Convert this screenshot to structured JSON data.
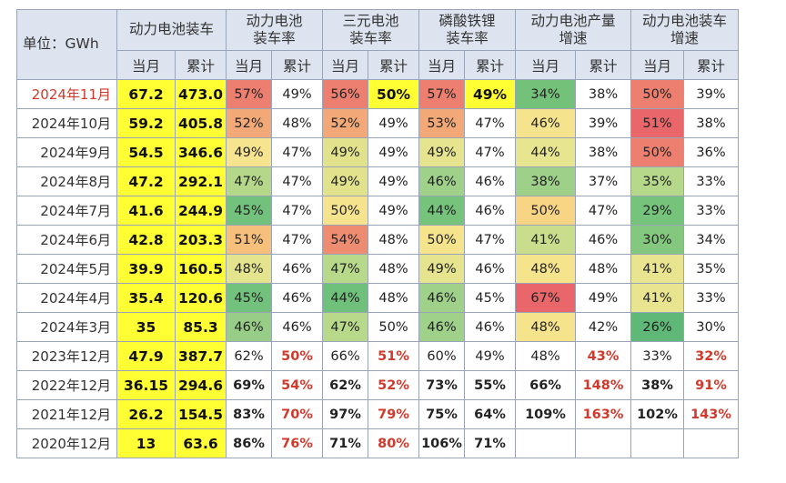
{
  "header": {
    "unit": "单位：GWh",
    "groups": [
      "动力电池装车",
      "动力电池\n装车率",
      "三元电池\n装车率",
      "磷酸铁锂\n装车率",
      "动力电池产量\n增速",
      "动力电池装车\n增速"
    ],
    "sub": [
      "当月",
      "累计"
    ]
  },
  "rows": [
    {
      "date": "2024年11月",
      "hl": true,
      "cells": [
        {
          "v": "67.2",
          "s": "y"
        },
        {
          "v": "473.0",
          "s": "y"
        },
        {
          "v": "57%",
          "bg": "#ec7f6f"
        },
        {
          "v": "49%"
        },
        {
          "v": "56%",
          "bg": "#ec7f6f"
        },
        {
          "v": "50%",
          "s": "y"
        },
        {
          "v": "57%",
          "bg": "#ec7f6f"
        },
        {
          "v": "49%",
          "s": "y"
        },
        {
          "v": "34%",
          "bg": "#74c27a"
        },
        {
          "v": "38%"
        },
        {
          "v": "50%",
          "bg": "#ec7f6f"
        },
        {
          "v": "39%"
        }
      ]
    },
    {
      "date": "2024年10月",
      "cells": [
        {
          "v": "59.2",
          "s": "y"
        },
        {
          "v": "405.8",
          "s": "y"
        },
        {
          "v": "52%",
          "bg": "#f2a977"
        },
        {
          "v": "48%"
        },
        {
          "v": "52%",
          "bg": "#f2a977"
        },
        {
          "v": "49%"
        },
        {
          "v": "53%",
          "bg": "#f2a977"
        },
        {
          "v": "47%"
        },
        {
          "v": "46%",
          "bg": "#f5e48d"
        },
        {
          "v": "39%"
        },
        {
          "v": "51%",
          "bg": "#e9676a"
        },
        {
          "v": "38%"
        }
      ]
    },
    {
      "date": "2024年9月",
      "cells": [
        {
          "v": "54.5",
          "s": "y"
        },
        {
          "v": "346.6",
          "s": "y"
        },
        {
          "v": "49%",
          "bg": "#f6e48f"
        },
        {
          "v": "47%"
        },
        {
          "v": "49%",
          "bg": "#e3e28c"
        },
        {
          "v": "49%"
        },
        {
          "v": "49%",
          "bg": "#e6e48f"
        },
        {
          "v": "47%"
        },
        {
          "v": "44%",
          "bg": "#e7e58f"
        },
        {
          "v": "38%"
        },
        {
          "v": "50%",
          "bg": "#ec7f6f"
        },
        {
          "v": "36%"
        }
      ]
    },
    {
      "date": "2024年8月",
      "cells": [
        {
          "v": "47.2",
          "s": "y"
        },
        {
          "v": "292.1",
          "s": "y"
        },
        {
          "v": "47%",
          "bg": "#b4d789"
        },
        {
          "v": "47%"
        },
        {
          "v": "49%",
          "bg": "#e3e28c"
        },
        {
          "v": "49%"
        },
        {
          "v": "46%",
          "bg": "#9fd18a"
        },
        {
          "v": "46%"
        },
        {
          "v": "38%",
          "bg": "#9ed089"
        },
        {
          "v": "37%"
        },
        {
          "v": "35%",
          "bg": "#b6d88a"
        },
        {
          "v": "33%"
        }
      ]
    },
    {
      "date": "2024年7月",
      "cells": [
        {
          "v": "41.6",
          "s": "y"
        },
        {
          "v": "244.9",
          "s": "y"
        },
        {
          "v": "45%",
          "bg": "#72c17c"
        },
        {
          "v": "47%"
        },
        {
          "v": "50%",
          "bg": "#f5e48d"
        },
        {
          "v": "49%"
        },
        {
          "v": "44%",
          "bg": "#76c37c"
        },
        {
          "v": "46%"
        },
        {
          "v": "50%",
          "bg": "#f8d485"
        },
        {
          "v": "47%"
        },
        {
          "v": "29%",
          "bg": "#76c37c"
        },
        {
          "v": "33%"
        }
      ]
    },
    {
      "date": "2024年6月",
      "cells": [
        {
          "v": "42.8",
          "s": "y"
        },
        {
          "v": "203.3",
          "s": "y"
        },
        {
          "v": "51%",
          "bg": "#f6c07c"
        },
        {
          "v": "47%"
        },
        {
          "v": "54%",
          "bg": "#ee8c72"
        },
        {
          "v": "48%"
        },
        {
          "v": "50%",
          "bg": "#f6e48d"
        },
        {
          "v": "47%"
        },
        {
          "v": "41%",
          "bg": "#c9dd8c"
        },
        {
          "v": "46%"
        },
        {
          "v": "30%",
          "bg": "#84c77e"
        },
        {
          "v": "34%"
        }
      ]
    },
    {
      "date": "2024年5月",
      "cells": [
        {
          "v": "39.9",
          "s": "y"
        },
        {
          "v": "160.5",
          "s": "y"
        },
        {
          "v": "48%",
          "bg": "#e4e38e"
        },
        {
          "v": "46%"
        },
        {
          "v": "47%",
          "bg": "#b8d98a"
        },
        {
          "v": "48%"
        },
        {
          "v": "49%",
          "bg": "#e6e48f"
        },
        {
          "v": "46%"
        },
        {
          "v": "48%",
          "bg": "#f6e48d"
        },
        {
          "v": "48%"
        },
        {
          "v": "41%",
          "bg": "#e8e48f"
        },
        {
          "v": "35%"
        }
      ]
    },
    {
      "date": "2024年4月",
      "cells": [
        {
          "v": "35.4",
          "s": "y"
        },
        {
          "v": "120.6",
          "s": "y"
        },
        {
          "v": "45%",
          "bg": "#72c17c"
        },
        {
          "v": "46%"
        },
        {
          "v": "44%",
          "bg": "#6fc07b"
        },
        {
          "v": "48%"
        },
        {
          "v": "46%",
          "bg": "#9fd18a"
        },
        {
          "v": "45%"
        },
        {
          "v": "67%",
          "bg": "#e9676a"
        },
        {
          "v": "49%"
        },
        {
          "v": "41%",
          "bg": "#e8e48f"
        },
        {
          "v": "33%"
        }
      ]
    },
    {
      "date": "2024年3月",
      "cells": [
        {
          "v": "35",
          "s": "y"
        },
        {
          "v": "85.3",
          "s": "y"
        },
        {
          "v": "46%",
          "bg": "#97cd86"
        },
        {
          "v": "46%"
        },
        {
          "v": "47%",
          "bg": "#b8d98a"
        },
        {
          "v": "50%"
        },
        {
          "v": "46%",
          "bg": "#9fd18a"
        },
        {
          "v": "46%"
        },
        {
          "v": "48%",
          "bg": "#f6e48d"
        },
        {
          "v": "42%"
        },
        {
          "v": "26%",
          "bg": "#5fb877"
        },
        {
          "v": "30%"
        }
      ]
    },
    {
      "date": "2023年12月",
      "cells": [
        {
          "v": "47.9",
          "s": "y"
        },
        {
          "v": "387.7",
          "s": "y"
        },
        {
          "v": "62%"
        },
        {
          "v": "50%",
          "s": "r"
        },
        {
          "v": "66%"
        },
        {
          "v": "51%",
          "s": "r"
        },
        {
          "v": "60%"
        },
        {
          "v": "49%"
        },
        {
          "v": "48%"
        },
        {
          "v": "43%",
          "s": "r"
        },
        {
          "v": "33%"
        },
        {
          "v": "32%",
          "s": "r"
        }
      ]
    },
    {
      "date": "2022年12月",
      "cells": [
        {
          "v": "36.15",
          "s": "y"
        },
        {
          "v": "294.6",
          "s": "y"
        },
        {
          "v": "69%",
          "s": "b"
        },
        {
          "v": "54%",
          "s": "r"
        },
        {
          "v": "62%",
          "s": "b"
        },
        {
          "v": "52%",
          "s": "r"
        },
        {
          "v": "73%",
          "s": "b"
        },
        {
          "v": "55%",
          "s": "b"
        },
        {
          "v": "66%",
          "s": "b"
        },
        {
          "v": "148%",
          "s": "r"
        },
        {
          "v": "38%",
          "s": "b"
        },
        {
          "v": "91%",
          "s": "r"
        }
      ]
    },
    {
      "date": "2021年12月",
      "cells": [
        {
          "v": "26.2",
          "s": "y"
        },
        {
          "v": "154.5",
          "s": "y"
        },
        {
          "v": "83%",
          "s": "b"
        },
        {
          "v": "70%",
          "s": "r"
        },
        {
          "v": "97%",
          "s": "b"
        },
        {
          "v": "79%",
          "s": "r"
        },
        {
          "v": "75%",
          "s": "b"
        },
        {
          "v": "64%",
          "s": "b"
        },
        {
          "v": "109%",
          "s": "b"
        },
        {
          "v": "163%",
          "s": "r"
        },
        {
          "v": "102%",
          "s": "b"
        },
        {
          "v": "143%",
          "s": "r"
        }
      ]
    },
    {
      "date": "2020年12月",
      "cells": [
        {
          "v": "13",
          "s": "y"
        },
        {
          "v": "63.6",
          "s": "y"
        },
        {
          "v": "86%",
          "s": "b"
        },
        {
          "v": "76%",
          "s": "r"
        },
        {
          "v": "71%",
          "s": "b"
        },
        {
          "v": "80%",
          "s": "r"
        },
        {
          "v": "106%",
          "s": "b"
        },
        {
          "v": "71%",
          "s": "b"
        },
        {
          "v": ""
        },
        {
          "v": ""
        },
        {
          "v": ""
        },
        {
          "v": ""
        }
      ]
    }
  ]
}
